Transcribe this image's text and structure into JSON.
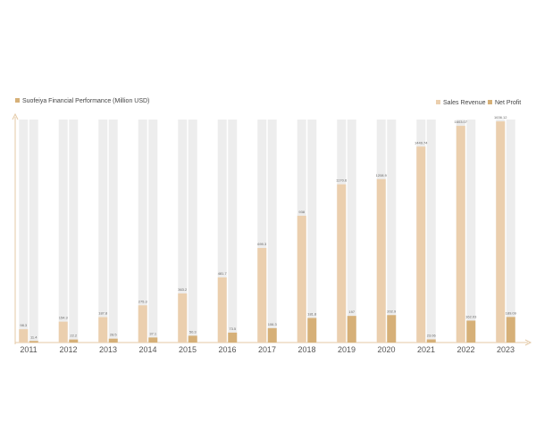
{
  "chart_data": {
    "type": "bar",
    "title": "Suofeiya Financial Performance (Million USD)",
    "xlabel": "",
    "ylabel": "",
    "categories": [
      "2011",
      "2012",
      "2013",
      "2014",
      "2015",
      "2016",
      "2017",
      "2018",
      "2019",
      "2020",
      "2021",
      "2022",
      "2023"
    ],
    "series": [
      {
        "name": "Sales Revenue",
        "values": [
          98.3,
          154.3,
          187.8,
          275.3,
          363.2,
          481.7,
          699.3,
          938,
          1170.6,
          1208.9,
          1449.74,
          1603.07,
          1636.12
        ],
        "labels": [
          "98.3",
          "154.3",
          "187.8",
          "275.3",
          "363.2",
          "481.7",
          "699.3",
          "938",
          "1170.6",
          "1208.9",
          "1449.74",
          "1603.07",
          "1636.12"
        ],
        "color": "#EBCFAE"
      },
      {
        "name": "Net Profit",
        "values": [
          11.4,
          22.2,
          28.5,
          37.1,
          50.3,
          73.5,
          106.3,
          181.8,
          197,
          202.9,
          23.06,
          162.03,
          189.09
        ],
        "labels": [
          "11.4",
          "22.2",
          "28.5",
          "37.1",
          "50.3",
          "73.5",
          "106.3",
          "181.8",
          "197",
          "202.9",
          "23.06",
          "162.03",
          "189.09"
        ],
        "color": "#D6B078"
      }
    ],
    "background_bar_color": "#EDEDED",
    "ylim": [
      0,
      1650
    ],
    "legend_position": "top-right",
    "grid": false
  }
}
